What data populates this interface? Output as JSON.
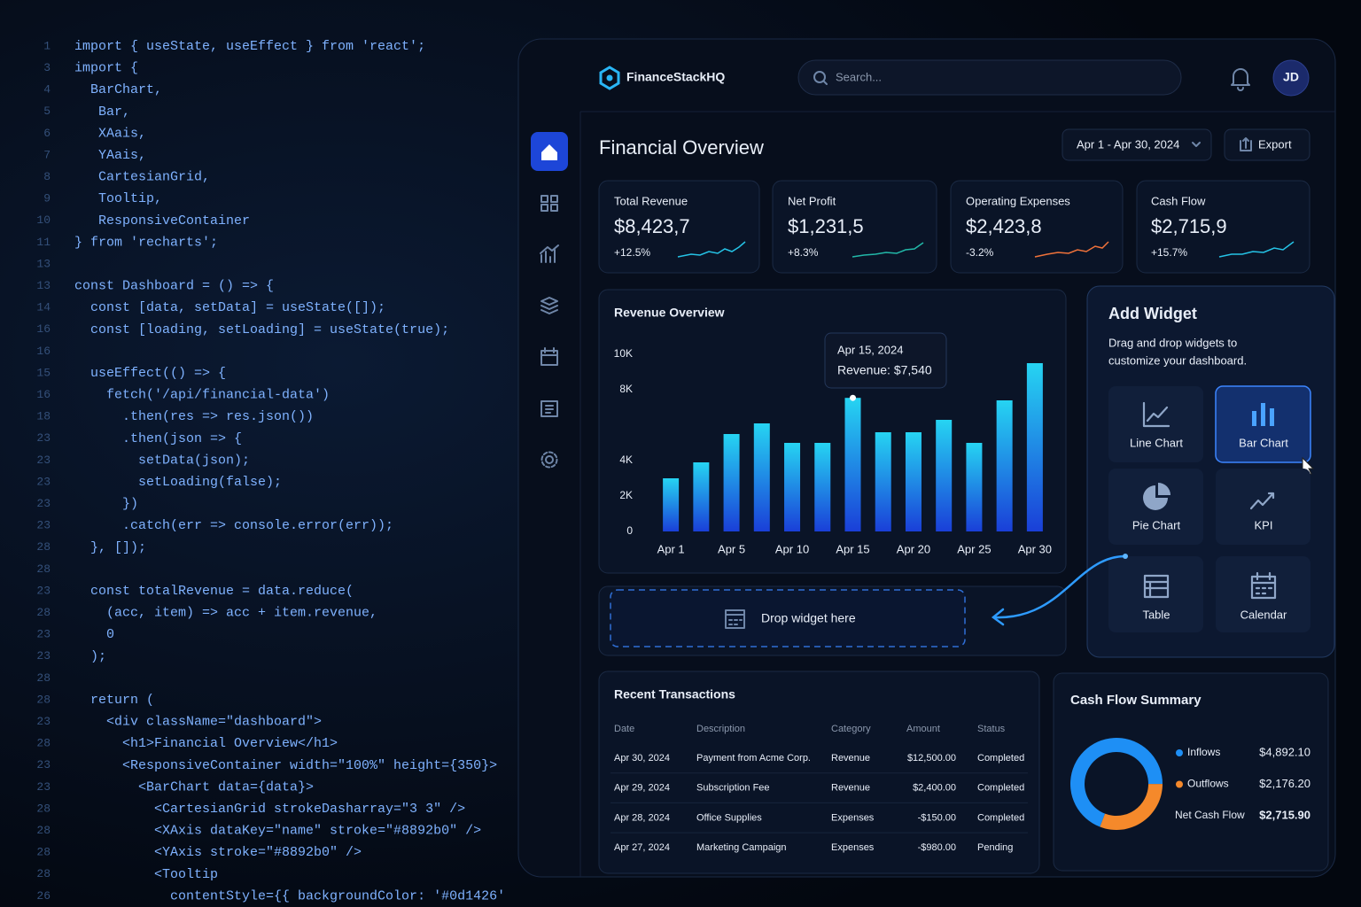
{
  "code": {
    "lines": [
      {
        "num": "1",
        "text": "import { useState, useEffect } from 'react';"
      },
      {
        "num": "3",
        "text": "import {"
      },
      {
        "num": "4",
        "text": "  BarChart,"
      },
      {
        "num": "5",
        "text": "   Bar,"
      },
      {
        "num": "6",
        "text": "   XAais,"
      },
      {
        "num": "7",
        "text": "   YAais,"
      },
      {
        "num": "8",
        "text": "   CartesianGrid,"
      },
      {
        "num": "9",
        "text": "   Tooltip,"
      },
      {
        "num": "10",
        "text": "   ResponsiveContainer"
      },
      {
        "num": "11",
        "text": "} from 'recharts';"
      },
      {
        "num": "13"
      },
      {
        "num": "13",
        "text": "const Dashboard = () => {"
      },
      {
        "num": "14",
        "text": "  const [data, setData] = useState([]);"
      },
      {
        "num": "16",
        "text": "  const [loading, setLoading] = useState(true);"
      },
      {
        "num": "16"
      },
      {
        "num": "15",
        "text": "  useEffect(() => {"
      },
      {
        "num": "16",
        "text": "    fetch('/api/financial-data')"
      },
      {
        "num": "18",
        "text": "      .then(res => res.json())"
      },
      {
        "num": "23",
        "text": "      .then(json => {"
      },
      {
        "num": "23",
        "text": "        setData(json);"
      },
      {
        "num": "23",
        "text": "        setLoading(false);"
      },
      {
        "num": "23",
        "text": "      })"
      },
      {
        "num": "23",
        "text": "      .catch(err => console.error(err));"
      },
      {
        "num": "28",
        "text": "  }, []);"
      },
      {
        "num": "28"
      },
      {
        "num": "23",
        "text": "  const totalRevenue = data.reduce("
      },
      {
        "num": "28",
        "text": "    (acc, item) => acc + item.revenue,"
      },
      {
        "num": "23",
        "text": "    0"
      },
      {
        "num": "23",
        "text": "  );"
      },
      {
        "num": "28"
      },
      {
        "num": "28",
        "text": "  return ("
      },
      {
        "num": "23",
        "text": "    <div className=\"dashboard\">"
      },
      {
        "num": "28",
        "text": "      <h1>Financial Overview</h1>"
      },
      {
        "num": "23",
        "text": "      <ResponsiveContainer width=\"100%\" height={350}>"
      },
      {
        "num": "23",
        "text": "        <BarChart data={data}>"
      },
      {
        "num": "28",
        "text": "          <CartesianGrid strokeDasharray=\"3 3\" />"
      },
      {
        "num": "28",
        "text": "          <XAxis dataKey=\"name\" stroke=\"#8892b0\" />"
      },
      {
        "num": "28",
        "text": "          <YAxis stroke=\"#8892b0\" />"
      },
      {
        "num": "28",
        "text": "          <Tooltip"
      },
      {
        "num": "26",
        "text": "            contentStyle={{ backgroundColor: '#0d1426'"
      }
    ]
  },
  "header": {
    "brand": "FinanceStackHQ",
    "search_placeholder": "Search...",
    "avatar": "JD"
  },
  "page": {
    "title": "Financial Overview",
    "date_range": "Apr 1 - Apr 30, 2024",
    "export": "Export"
  },
  "kpis": [
    {
      "label": "Total Revenue",
      "value": "$8,423,7",
      "change": "+12.5%"
    },
    {
      "label": "Net Profit",
      "value": "$1,231,5",
      "change": "+8.3%"
    },
    {
      "label": "Operating Expenses",
      "value": "$2,423,8",
      "change": "-3.2%"
    },
    {
      "label": "Cash Flow",
      "value": "$2,715,9",
      "change": "+15.7%"
    }
  ],
  "chart_data": [
    {
      "type": "bar",
      "title": "Revenue Overview",
      "categories": [
        "Apr 1",
        null,
        "Apr 5",
        null,
        "Apr 10",
        null,
        "Apr 15",
        null,
        "Apr 20",
        null,
        "Apr 25",
        null,
        "Apr 30"
      ],
      "values": [
        3000,
        3900,
        5500,
        6100,
        5000,
        5000,
        7540,
        5600,
        5600,
        6300,
        5000,
        7400,
        9500
      ],
      "colors": [
        "#26d4f2",
        "#1a3fd8"
      ],
      "ylim": [
        0,
        10000
      ],
      "yticks": [
        0,
        {
          "value": 2000,
          "label": "2K"
        },
        {
          "value": 4000,
          "label": "4K"
        },
        {
          "value": 8000,
          "label": "8K"
        },
        {
          "value": 10000,
          "label": "10K"
        }
      ],
      "grid": false,
      "tooltip": {
        "title": "Apr 15, 2024",
        "text": "Revenue: $7,540"
      }
    },
    {
      "type": "donut",
      "title": "Cash Flow Summary",
      "categories": [
        "Inflows",
        "Outflows"
      ],
      "values": [
        4892.1,
        2176.2
      ],
      "value_labels": [
        "$4,892.10",
        "$2,176.20"
      ],
      "colors": [
        "#1e8ff5",
        "#f5892b"
      ],
      "net_label": "Net Cash Flow",
      "net_value": "$2,715.90"
    }
  ],
  "drop_zone": {
    "text": "Drop widget here"
  },
  "add_widget": {
    "title": "Add Widget",
    "description": [
      "Drag and drop widgets to",
      "customize your dashboard."
    ],
    "widgets": [
      "Line Chart",
      "Bar Chart",
      "Pie Chart",
      "KPI",
      "Table",
      "Calendar"
    ]
  },
  "transactions": {
    "title": "Recent Transactions",
    "columns": [
      "Date",
      "Description",
      "Category",
      "Amount",
      "Status"
    ],
    "rows": [
      [
        "Apr 30, 2024",
        "Payment from Acme Corp.",
        "Revenue",
        "$12,500.00",
        "Completed"
      ],
      [
        "Apr 29, 2024",
        "Subscription Fee",
        "Revenue",
        "$2,400.00",
        "Completed"
      ],
      [
        "Apr 28, 2024",
        "Office Supplies",
        "Expenses",
        "-$150.00",
        "Completed"
      ],
      [
        "Apr 27, 2024",
        "Marketing Campaign",
        "Expenses",
        "-$980.00",
        "Pending"
      ]
    ]
  }
}
